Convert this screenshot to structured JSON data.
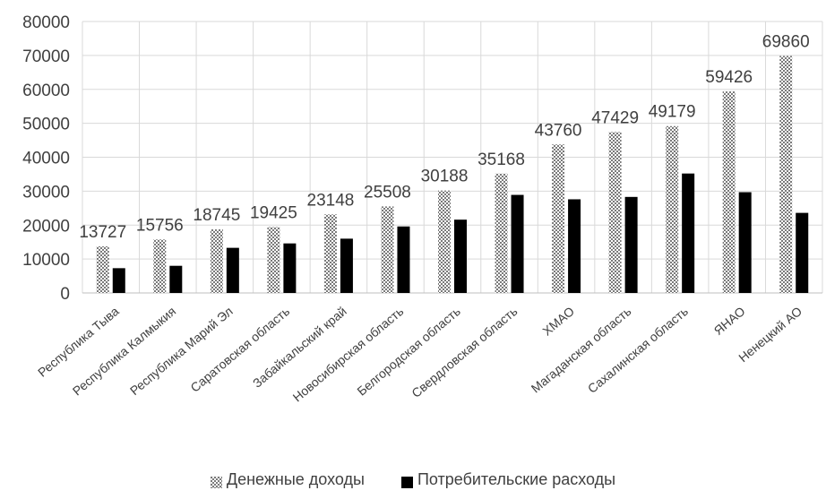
{
  "chart_data": {
    "type": "bar",
    "title": "",
    "xlabel": "",
    "ylabel": "",
    "ylim": [
      0,
      80000
    ],
    "yticks": [
      0,
      10000,
      20000,
      30000,
      40000,
      50000,
      60000,
      70000,
      80000
    ],
    "grid": "vertical",
    "legend_position": "bottom",
    "categories": [
      "Республика Тыва",
      "Республика Калмыкия",
      "Республика Марий Эл",
      "Саратовская область",
      "Забайкальский край",
      "Новосибирская область",
      "Белгородская область",
      "Свердловская область",
      "ХМАО",
      "Магаданская область",
      "Сахалинская область",
      "ЯНАО",
      "Ненецкий АО"
    ],
    "series": [
      {
        "name": "Денежные доходы",
        "values": [
          13727,
          15756,
          18745,
          19425,
          23148,
          25508,
          30188,
          35168,
          43760,
          47429,
          49179,
          59426,
          69860
        ],
        "show_labels": true,
        "fill": "checker",
        "color": "#8c8c8c"
      },
      {
        "name": "Потребительские расходы",
        "values": [
          7300,
          8000,
          13300,
          14600,
          16000,
          19600,
          21600,
          28900,
          27600,
          28300,
          35200,
          29700,
          23600
        ],
        "show_labels": false,
        "fill": "solid",
        "color": "#000000"
      }
    ]
  }
}
